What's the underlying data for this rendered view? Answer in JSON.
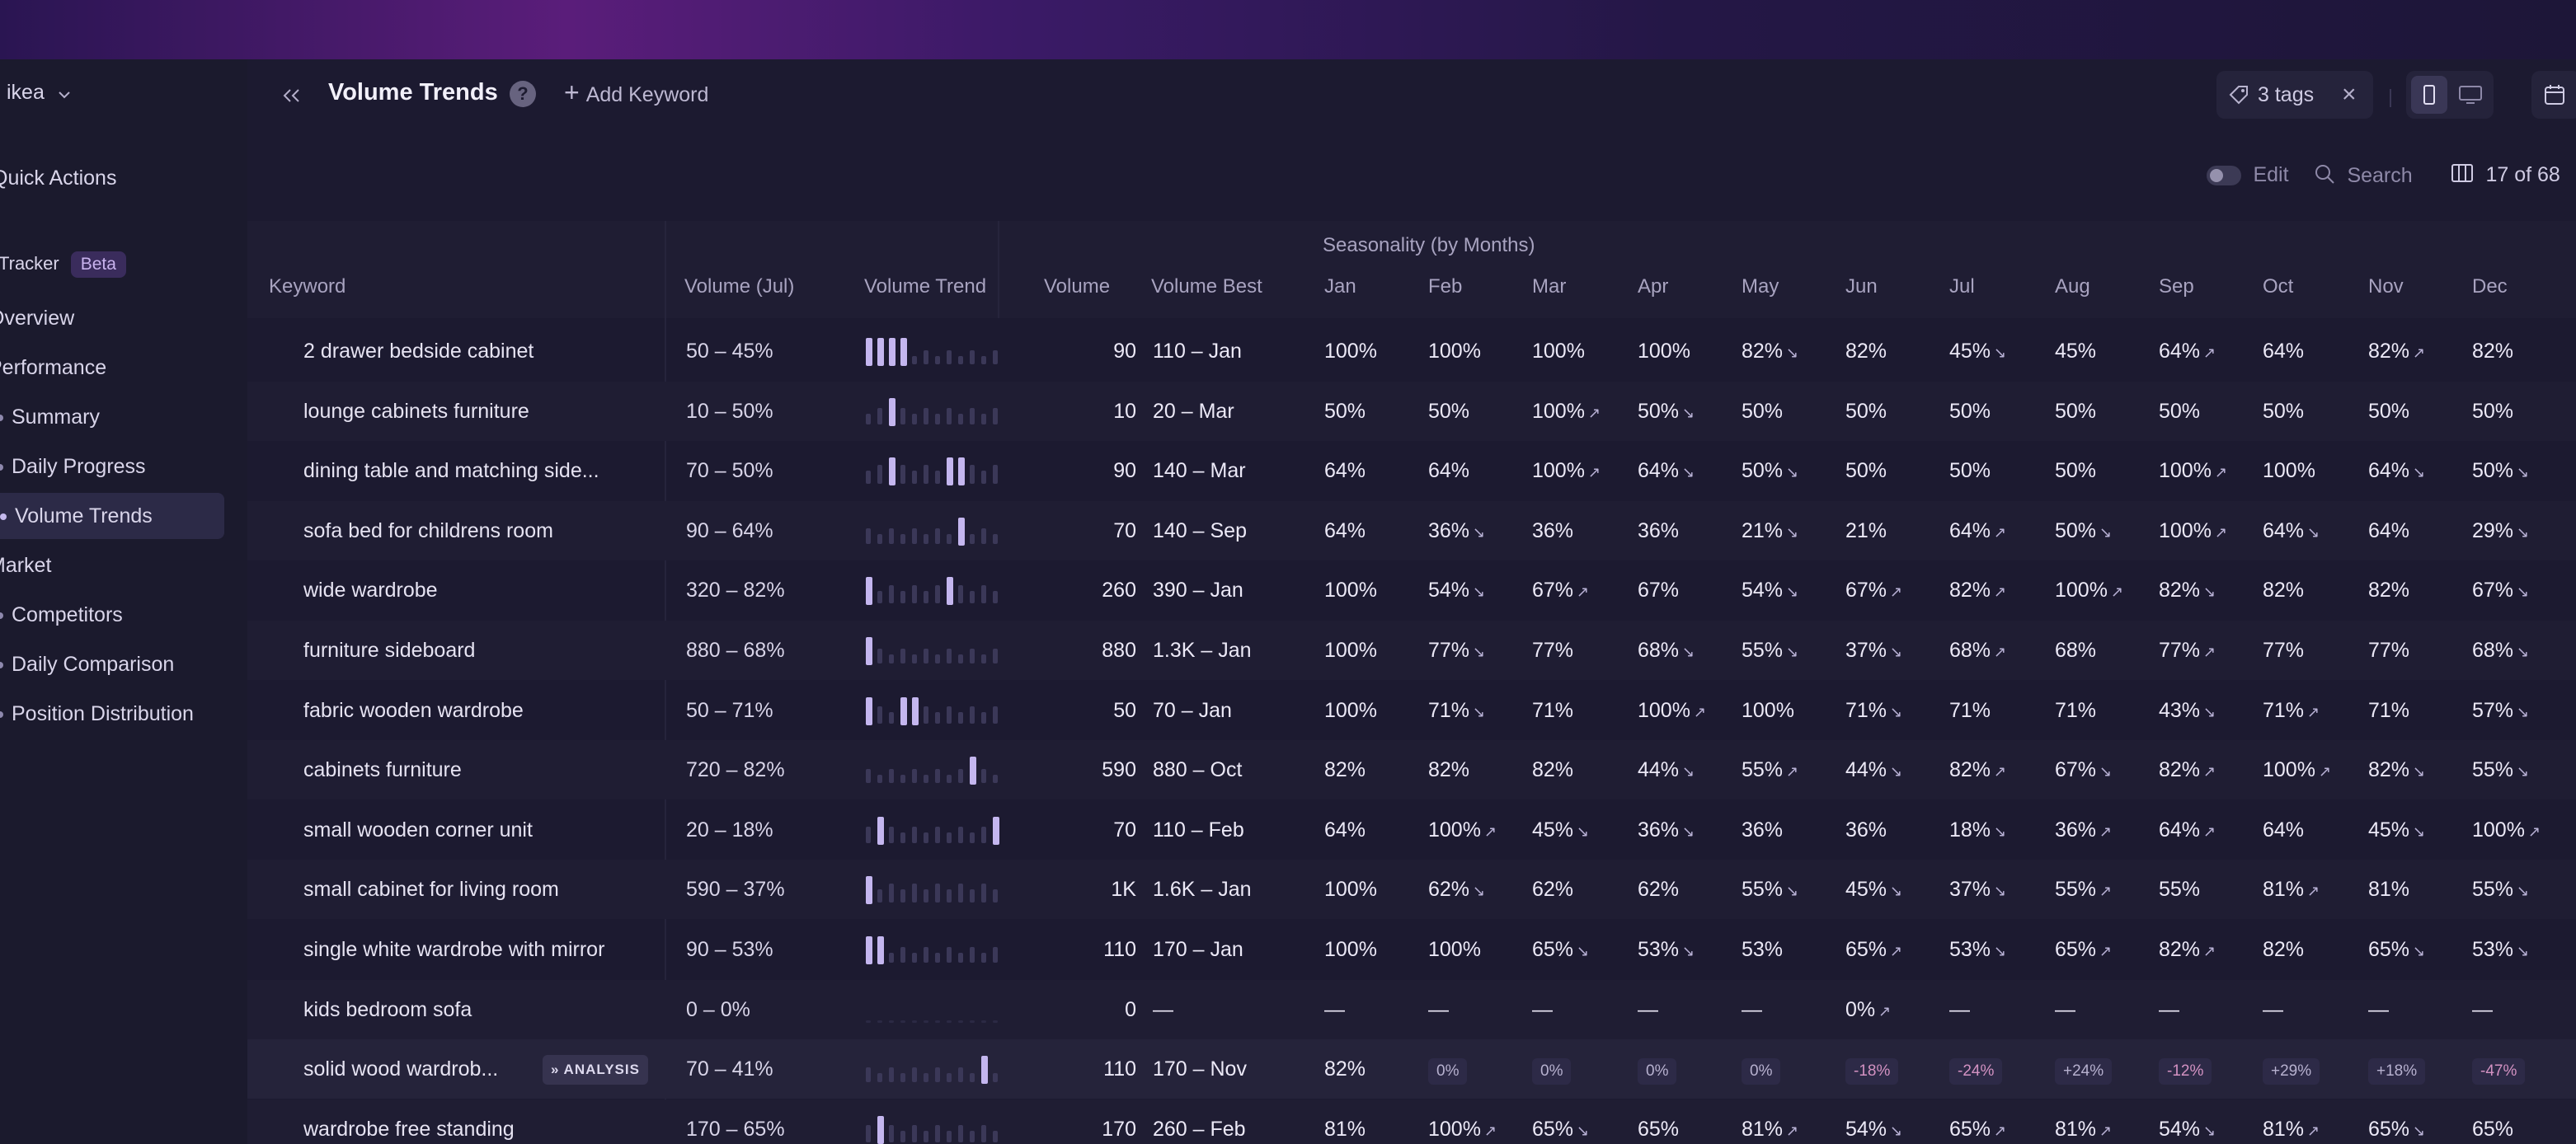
{
  "workspace": "ikea",
  "sidebar": {
    "quick_actions": "Quick Actions",
    "tracker": "Tracker",
    "tracker_badge": "Beta",
    "overview": "Overview",
    "performance": "Performance",
    "summary": "Summary",
    "daily_progress": "Daily Progress",
    "volume_trends": "Volume Trends",
    "market": "Market",
    "competitors": "Competitors",
    "daily_comparison": "Daily Comparison",
    "position_distribution": "Position Distribution"
  },
  "header": {
    "title": "Volume Trends",
    "add_keyword": "Add Keyword",
    "tags": "3 tags"
  },
  "controls": {
    "edit": "Edit",
    "search": "Search",
    "columns": "17 of 68"
  },
  "table": {
    "group_header": "Seasonality (by Months)",
    "columns": {
      "keyword": "Keyword",
      "volume_jul": "Volume (Jul)",
      "volume_trend": "Volume Trend",
      "volume": "Volume",
      "volume_best": "Volume Best"
    },
    "months": [
      "Jan",
      "Feb",
      "Mar",
      "Apr",
      "May",
      "Jun",
      "Jul",
      "Aug",
      "Sep",
      "Oct",
      "Nov",
      "Dec"
    ],
    "analysis_label": "ANALYSIS",
    "rows": [
      {
        "keyword": "2 drawer bedside cabinet",
        "vol_jul": "50 – 45%",
        "volume": "90",
        "best": "110 – Jan",
        "trend": [
          1,
          1,
          1,
          1,
          0,
          0,
          0,
          0,
          0,
          0,
          0,
          0
        ],
        "months": [
          [
            "100%",
            ""
          ],
          [
            "100%",
            ""
          ],
          [
            "100%",
            ""
          ],
          [
            "100%",
            ""
          ],
          [
            "82%",
            "↘"
          ],
          [
            "82%",
            ""
          ],
          [
            "45%",
            "↘"
          ],
          [
            "45%",
            ""
          ],
          [
            "64%",
            "↗"
          ],
          [
            "64%",
            ""
          ],
          [
            "82%",
            "↗"
          ],
          [
            "82%",
            ""
          ]
        ]
      },
      {
        "keyword": "lounge cabinets furniture",
        "vol_jul": "10 – 50%",
        "volume": "10",
        "best": "20 – Mar",
        "trend": [
          0,
          0,
          1,
          0,
          0,
          0,
          0,
          0,
          0,
          0,
          0,
          0
        ],
        "months": [
          [
            "50%",
            ""
          ],
          [
            "50%",
            ""
          ],
          [
            "100%",
            "↗"
          ],
          [
            "50%",
            "↘"
          ],
          [
            "50%",
            ""
          ],
          [
            "50%",
            ""
          ],
          [
            "50%",
            ""
          ],
          [
            "50%",
            ""
          ],
          [
            "50%",
            ""
          ],
          [
            "50%",
            ""
          ],
          [
            "50%",
            ""
          ],
          [
            "50%",
            ""
          ]
        ]
      },
      {
        "keyword": "dining table and matching side...",
        "vol_jul": "70 – 50%",
        "volume": "90",
        "best": "140 – Mar",
        "trend": [
          0,
          0,
          1,
          0,
          0,
          0,
          0,
          1,
          1,
          0,
          0,
          0
        ],
        "months": [
          [
            "64%",
            ""
          ],
          [
            "64%",
            ""
          ],
          [
            "100%",
            "↗"
          ],
          [
            "64%",
            "↘"
          ],
          [
            "50%",
            "↘"
          ],
          [
            "50%",
            ""
          ],
          [
            "50%",
            ""
          ],
          [
            "50%",
            ""
          ],
          [
            "100%",
            "↗"
          ],
          [
            "100%",
            ""
          ],
          [
            "64%",
            "↘"
          ],
          [
            "50%",
            "↘"
          ]
        ]
      },
      {
        "keyword": "sofa bed for childrens room",
        "vol_jul": "90 – 64%",
        "volume": "70",
        "best": "140 – Sep",
        "trend": [
          0,
          0,
          0,
          0,
          0,
          0,
          0,
          0,
          1,
          0,
          0,
          0
        ],
        "months": [
          [
            "64%",
            ""
          ],
          [
            "36%",
            "↘"
          ],
          [
            "36%",
            ""
          ],
          [
            "36%",
            ""
          ],
          [
            "21%",
            "↘"
          ],
          [
            "21%",
            ""
          ],
          [
            "64%",
            "↗"
          ],
          [
            "50%",
            "↘"
          ],
          [
            "100%",
            "↗"
          ],
          [
            "64%",
            "↘"
          ],
          [
            "64%",
            ""
          ],
          [
            "29%",
            "↘"
          ]
        ]
      },
      {
        "keyword": "wide wardrobe",
        "vol_jul": "320 – 82%",
        "volume": "260",
        "best": "390 – Jan",
        "trend": [
          1,
          0,
          0,
          0,
          0,
          0,
          0,
          1,
          0,
          0,
          0,
          0
        ],
        "months": [
          [
            "100%",
            ""
          ],
          [
            "54%",
            "↘"
          ],
          [
            "67%",
            "↗"
          ],
          [
            "67%",
            ""
          ],
          [
            "54%",
            "↘"
          ],
          [
            "67%",
            "↗"
          ],
          [
            "82%",
            "↗"
          ],
          [
            "100%",
            "↗"
          ],
          [
            "82%",
            "↘"
          ],
          [
            "82%",
            ""
          ],
          [
            "82%",
            ""
          ],
          [
            "67%",
            "↘"
          ]
        ]
      },
      {
        "keyword": "furniture sideboard",
        "vol_jul": "880 – 68%",
        "volume": "880",
        "best": "1.3K – Jan",
        "trend": [
          1,
          0,
          0,
          0,
          0,
          0,
          0,
          0,
          0,
          0,
          0,
          0
        ],
        "months": [
          [
            "100%",
            ""
          ],
          [
            "77%",
            "↘"
          ],
          [
            "77%",
            ""
          ],
          [
            "68%",
            "↘"
          ],
          [
            "55%",
            "↘"
          ],
          [
            "37%",
            "↘"
          ],
          [
            "68%",
            "↗"
          ],
          [
            "68%",
            ""
          ],
          [
            "77%",
            "↗"
          ],
          [
            "77%",
            ""
          ],
          [
            "77%",
            ""
          ],
          [
            "68%",
            "↘"
          ]
        ]
      },
      {
        "keyword": "fabric wooden wardrobe",
        "vol_jul": "50 – 71%",
        "volume": "50",
        "best": "70 – Jan",
        "trend": [
          1,
          0,
          0,
          1,
          1,
          0,
          0,
          0,
          0,
          0,
          0,
          0
        ],
        "months": [
          [
            "100%",
            ""
          ],
          [
            "71%",
            "↘"
          ],
          [
            "71%",
            ""
          ],
          [
            "100%",
            "↗"
          ],
          [
            "100%",
            ""
          ],
          [
            "71%",
            "↘"
          ],
          [
            "71%",
            ""
          ],
          [
            "71%",
            ""
          ],
          [
            "43%",
            "↘"
          ],
          [
            "71%",
            "↗"
          ],
          [
            "71%",
            ""
          ],
          [
            "57%",
            "↘"
          ]
        ]
      },
      {
        "keyword": "cabinets furniture",
        "vol_jul": "720 – 82%",
        "volume": "590",
        "best": "880 – Oct",
        "trend": [
          0,
          0,
          0,
          0,
          0,
          0,
          0,
          0,
          0,
          1,
          0,
          0
        ],
        "months": [
          [
            "82%",
            ""
          ],
          [
            "82%",
            ""
          ],
          [
            "82%",
            ""
          ],
          [
            "44%",
            "↘"
          ],
          [
            "55%",
            "↗"
          ],
          [
            "44%",
            "↘"
          ],
          [
            "82%",
            "↗"
          ],
          [
            "67%",
            "↘"
          ],
          [
            "82%",
            "↗"
          ],
          [
            "100%",
            "↗"
          ],
          [
            "82%",
            "↘"
          ],
          [
            "55%",
            "↘"
          ]
        ]
      },
      {
        "keyword": "small wooden corner unit",
        "vol_jul": "20 – 18%",
        "volume": "70",
        "best": "110 – Feb",
        "trend": [
          0,
          1,
          0,
          0,
          0,
          0,
          0,
          0,
          0,
          0,
          0,
          1
        ],
        "months": [
          [
            "64%",
            ""
          ],
          [
            "100%",
            "↗"
          ],
          [
            "45%",
            "↘"
          ],
          [
            "36%",
            "↘"
          ],
          [
            "36%",
            ""
          ],
          [
            "36%",
            ""
          ],
          [
            "18%",
            "↘"
          ],
          [
            "36%",
            "↗"
          ],
          [
            "64%",
            "↗"
          ],
          [
            "64%",
            ""
          ],
          [
            "45%",
            "↘"
          ],
          [
            "100%",
            "↗"
          ]
        ]
      },
      {
        "keyword": "small cabinet for living room",
        "vol_jul": "590 – 37%",
        "volume": "1K",
        "best": "1.6K – Jan",
        "trend": [
          1,
          0,
          0,
          0,
          0,
          0,
          0,
          0,
          0,
          0,
          0,
          0
        ],
        "months": [
          [
            "100%",
            ""
          ],
          [
            "62%",
            "↘"
          ],
          [
            "62%",
            ""
          ],
          [
            "62%",
            ""
          ],
          [
            "55%",
            "↘"
          ],
          [
            "45%",
            "↘"
          ],
          [
            "37%",
            "↘"
          ],
          [
            "55%",
            "↗"
          ],
          [
            "55%",
            ""
          ],
          [
            "81%",
            "↗"
          ],
          [
            "81%",
            ""
          ],
          [
            "55%",
            "↘"
          ]
        ]
      },
      {
        "keyword": "single white wardrobe with mirror",
        "vol_jul": "90 – 53%",
        "volume": "110",
        "best": "170 – Jan",
        "trend": [
          1,
          1,
          0,
          0,
          0,
          0,
          0,
          0,
          0,
          0,
          0,
          0
        ],
        "months": [
          [
            "100%",
            ""
          ],
          [
            "100%",
            ""
          ],
          [
            "65%",
            "↘"
          ],
          [
            "53%",
            "↘"
          ],
          [
            "53%",
            ""
          ],
          [
            "65%",
            "↗"
          ],
          [
            "53%",
            "↘"
          ],
          [
            "65%",
            "↗"
          ],
          [
            "82%",
            "↗"
          ],
          [
            "82%",
            ""
          ],
          [
            "65%",
            "↘"
          ],
          [
            "53%",
            "↘"
          ]
        ]
      },
      {
        "keyword": "kids bedroom sofa",
        "vol_jul": "0 – 0%",
        "volume": "0",
        "best": "—",
        "trend": [
          0,
          0,
          0,
          0,
          0,
          0,
          0,
          0,
          0,
          0,
          0,
          0
        ],
        "empty": true,
        "months": [
          [
            "—",
            ""
          ],
          [
            "—",
            ""
          ],
          [
            "—",
            ""
          ],
          [
            "—",
            ""
          ],
          [
            "—",
            ""
          ],
          [
            "0%",
            "↗"
          ],
          [
            "—",
            ""
          ],
          [
            "—",
            ""
          ],
          [
            "—",
            ""
          ],
          [
            "—",
            ""
          ],
          [
            "—",
            ""
          ],
          [
            "—",
            ""
          ]
        ]
      },
      {
        "keyword": "solid wood wardrob...",
        "vol_jul": "70 – 41%",
        "volume": "110",
        "best": "170 – Nov",
        "analysis": true,
        "trend": [
          0,
          0,
          0,
          0,
          0,
          0,
          0,
          0,
          0,
          0,
          1,
          0
        ],
        "months": [
          [
            "82%",
            ""
          ],
          [
            "0%",
            "chip"
          ],
          [
            "0%",
            "chip"
          ],
          [
            "0%",
            "chip"
          ],
          [
            "0%",
            "chip"
          ],
          [
            "-18%",
            "neg"
          ],
          [
            "-24%",
            "neg"
          ],
          [
            "+24%",
            "chip"
          ],
          [
            "-12%",
            "neg"
          ],
          [
            "+29%",
            "chip"
          ],
          [
            "+18%",
            "chip"
          ],
          [
            "-47%",
            "neg"
          ]
        ]
      },
      {
        "keyword": "wardrobe free standing",
        "vol_jul": "170 – 65%",
        "volume": "170",
        "best": "260 – Feb",
        "trend": [
          0,
          1,
          0,
          0,
          0,
          0,
          0,
          0,
          0,
          0,
          0,
          0
        ],
        "months": [
          [
            "81%",
            ""
          ],
          [
            "100%",
            "↗"
          ],
          [
            "65%",
            "↘"
          ],
          [
            "65%",
            ""
          ],
          [
            "81%",
            "↗"
          ],
          [
            "54%",
            "↘"
          ],
          [
            "65%",
            "↗"
          ],
          [
            "81%",
            "↗"
          ],
          [
            "54%",
            "↘"
          ],
          [
            "81%",
            "↗"
          ],
          [
            "65%",
            "↘"
          ],
          [
            "65%",
            ""
          ]
        ]
      }
    ]
  }
}
